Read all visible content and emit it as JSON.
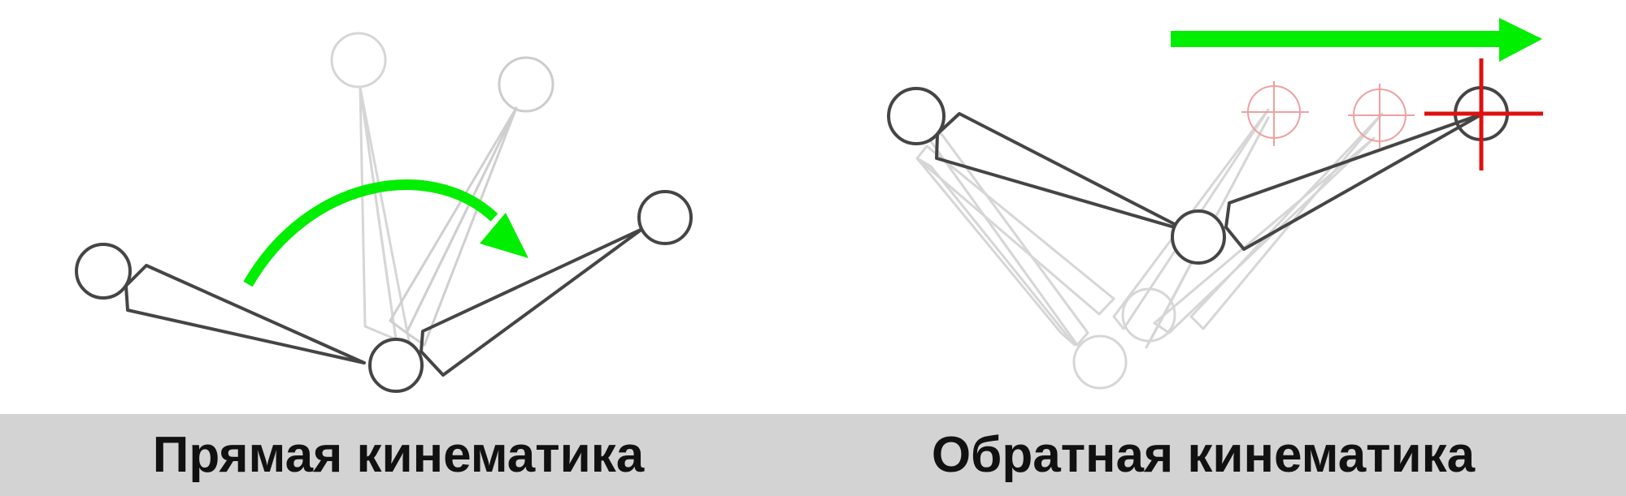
{
  "captions": {
    "forward": "Прямая кинематика",
    "inverse": "Обратная кинематика"
  },
  "colors": {
    "bone": "#454545",
    "ghost": "#d6d6d6",
    "arrow": "#00ee00",
    "target": "#e01010",
    "target_ghost": "#f0a0a0",
    "caption_bar": "#d3d3d3"
  },
  "icons": {
    "forward_arrow": "curved-rotation-arrow",
    "inverse_arrow": "straight-right-arrow",
    "target": "crosshair-target"
  }
}
